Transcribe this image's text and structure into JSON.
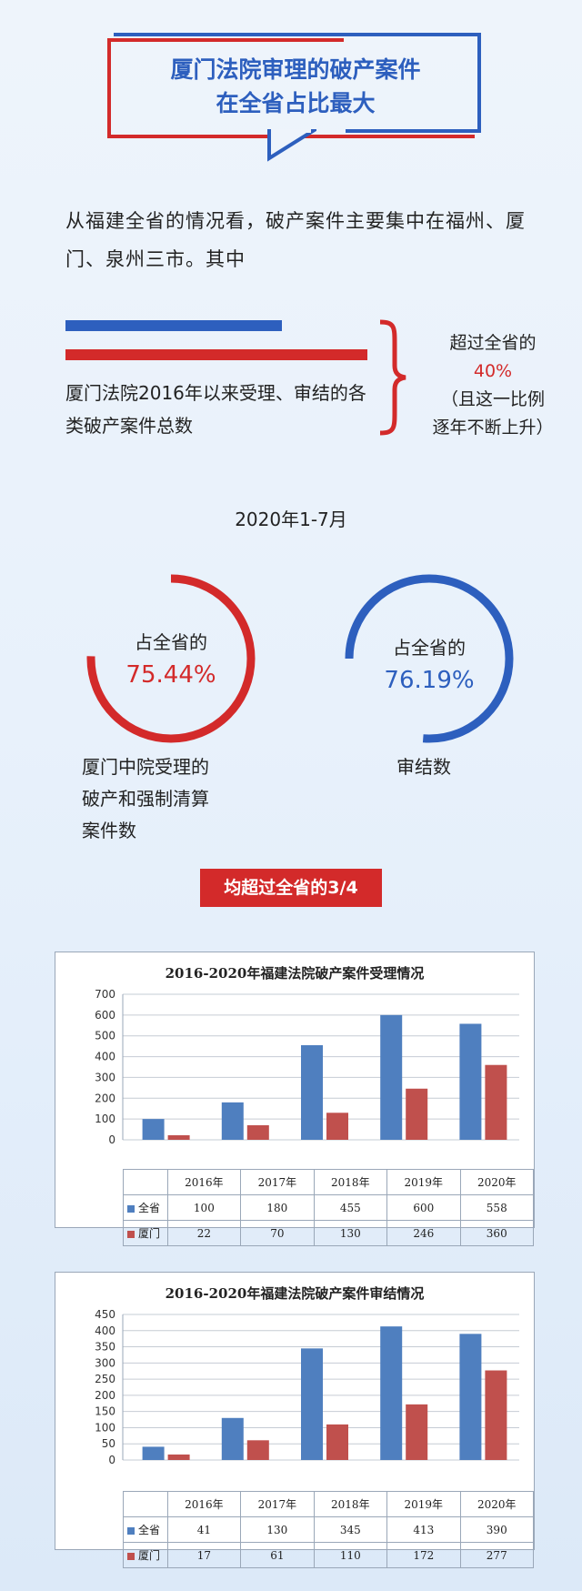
{
  "banner": {
    "line1": "厦门法院审理的破产案件",
    "line2": "在全省占比最大"
  },
  "intro": {
    "text": "从福建全省的情况看，破产案件主要集中在福州、厦门、泉州三市。其中"
  },
  "xiamen_total": {
    "label": "厦门法院2016年以来受理、审结的各类破产案件总数"
  },
  "stat_right": {
    "line1": "超过全省的",
    "pct": "40%",
    "line3": "（且这一比例",
    "line4": "逐年不断上升）"
  },
  "period": "2020年1-7月",
  "ring_left": {
    "label": "占全省的",
    "pct": "75.44%",
    "value": 75.44,
    "caption1": "厦门中院受理的",
    "caption2": "破产和强制清算",
    "caption3": "案件数",
    "color": "#d32a2a"
  },
  "ring_right": {
    "label": "占全省的",
    "pct": "76.19%",
    "value": 76.19,
    "caption1": "审结数",
    "color": "#2d5fbe"
  },
  "pill": "均超过全省的3/4",
  "chart_data": [
    {
      "type": "bar",
      "title": "2016-2020年福建法院破产案件受理情况",
      "categories": [
        "2016年",
        "2017年",
        "2018年",
        "2019年",
        "2020年"
      ],
      "series": [
        {
          "name": "全省",
          "values": [
            100,
            180,
            455,
            600,
            558
          ],
          "color": "#4f7fbf"
        },
        {
          "name": "厦门",
          "values": [
            22,
            70,
            130,
            246,
            360
          ],
          "color": "#c0504d"
        }
      ],
      "ylim": [
        0,
        700
      ],
      "yticks": [
        0,
        100,
        200,
        300,
        400,
        500,
        600,
        700
      ],
      "grid": true,
      "legend": "data table"
    },
    {
      "type": "bar",
      "title": "2016-2020年福建法院破产案件审结情况",
      "categories": [
        "2016年",
        "2017年",
        "2018年",
        "2019年",
        "2020年"
      ],
      "series": [
        {
          "name": "全省",
          "values": [
            41,
            130,
            345,
            413,
            390
          ],
          "color": "#4f7fbf"
        },
        {
          "name": "厦门",
          "values": [
            17,
            61,
            110,
            172,
            277
          ],
          "color": "#c0504d"
        }
      ],
      "ylim": [
        0,
        450
      ],
      "yticks": [
        0,
        50,
        100,
        150,
        200,
        250,
        300,
        350,
        400,
        450
      ],
      "grid": true,
      "legend": "data table"
    }
  ]
}
